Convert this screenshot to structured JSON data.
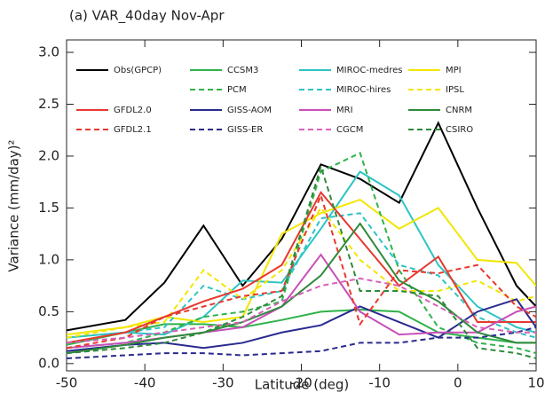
{
  "chart_data": {
    "type": "line",
    "title": "(a) VAR_40day   Nov-Apr",
    "x_label": "Latitude (deg)",
    "y_label": "Variance (mm/day)²",
    "x": [
      -50,
      -42.5,
      -37.5,
      -32.5,
      -27.5,
      -22.5,
      -17.5,
      -12.5,
      -7.5,
      -2.5,
      2.5,
      7.5,
      10
    ],
    "xlim": [
      -50,
      10
    ],
    "xticks": [
      -50,
      -40,
      -30,
      -20,
      -10,
      0,
      10
    ],
    "ylim": [
      -0.07,
      3.12
    ],
    "yticks": [
      {
        "value": 0,
        "label": "0.0"
      },
      0.5,
      {
        "value": 1,
        "label": "1.0"
      },
      1.5,
      {
        "value": 2,
        "label": "2.0"
      },
      2.5,
      {
        "value": 3,
        "label": "3.0"
      }
    ],
    "series": [
      {
        "name": "Obs(GPCP)",
        "color": "#000000",
        "dashed": false,
        "values": [
          0.32,
          0.42,
          0.78,
          1.33,
          0.75,
          1.2,
          1.92,
          1.78,
          1.55,
          2.32,
          1.5,
          0.75,
          0.55
        ]
      },
      {
        "name": "CCSM3",
        "color": "#2fb24a",
        "dashed": false,
        "values": [
          0.18,
          0.3,
          0.38,
          0.38,
          0.35,
          0.42,
          0.5,
          0.52,
          0.5,
          0.3,
          0.25,
          0.2,
          0.2
        ]
      },
      {
        "name": "MIROC-medres",
        "color": "#2ec4c4",
        "dashed": false,
        "values": [
          0.25,
          0.3,
          0.28,
          0.45,
          0.8,
          0.78,
          1.3,
          1.85,
          1.62,
          0.95,
          0.55,
          0.35,
          0.3
        ]
      },
      {
        "name": "MPI",
        "color": "#f2e600",
        "dashed": false,
        "values": [
          0.28,
          0.35,
          0.45,
          0.4,
          0.45,
          1.25,
          1.45,
          1.58,
          1.3,
          1.5,
          1.0,
          0.97,
          0.75
        ]
      },
      {
        "name": "PCM",
        "color": "#2fb24a",
        "dashed": true,
        "values": [
          0.15,
          0.2,
          0.3,
          0.45,
          0.5,
          0.6,
          1.85,
          2.03,
          0.9,
          0.35,
          0.2,
          0.15,
          0.1
        ]
      },
      {
        "name": "MIROC-hires",
        "color": "#2ec4c4",
        "dashed": true,
        "values": [
          0.25,
          0.3,
          0.35,
          0.75,
          0.62,
          0.7,
          1.4,
          1.45,
          0.95,
          0.85,
          0.45,
          0.3,
          0.25
        ]
      },
      {
        "name": "IPSL",
        "color": "#f2e600",
        "dashed": true,
        "values": [
          0.25,
          0.35,
          0.4,
          0.9,
          0.62,
          0.9,
          1.5,
          1.0,
          0.7,
          0.7,
          0.8,
          0.6,
          0.65
        ]
      },
      {
        "name": "GFDL2.0",
        "color": "#e8382e",
        "dashed": false,
        "values": [
          0.2,
          0.3,
          0.45,
          0.6,
          0.72,
          0.95,
          1.65,
          1.2,
          0.75,
          1.03,
          0.4,
          0.4,
          0.4
        ]
      },
      {
        "name": "GISS-AOM",
        "color": "#2a2a8f",
        "dashed": false,
        "values": [
          0.12,
          0.18,
          0.2,
          0.15,
          0.2,
          0.3,
          0.37,
          0.55,
          0.4,
          0.25,
          0.5,
          0.62,
          0.35
        ]
      },
      {
        "name": "MRI",
        "color": "#c84fb8",
        "dashed": false,
        "values": [
          0.15,
          0.2,
          0.25,
          0.3,
          0.35,
          0.55,
          1.05,
          0.5,
          0.28,
          0.3,
          0.3,
          0.5,
          0.55
        ]
      },
      {
        "name": "CNRM",
        "color": "#2e8a3a",
        "dashed": false,
        "values": [
          0.1,
          0.18,
          0.25,
          0.3,
          0.4,
          0.55,
          0.85,
          1.35,
          0.8,
          0.6,
          0.3,
          0.2,
          0.2
        ]
      },
      {
        "name": "GFDL2.1",
        "color": "#e8382e",
        "dashed": true,
        "values": [
          0.15,
          0.25,
          0.45,
          0.55,
          0.65,
          0.7,
          1.62,
          0.38,
          0.9,
          0.87,
          0.95,
          0.55,
          0.45
        ]
      },
      {
        "name": "GISS-ER",
        "color": "#2a2a8f",
        "dashed": true,
        "values": [
          0.05,
          0.08,
          0.1,
          0.1,
          0.08,
          0.1,
          0.12,
          0.2,
          0.2,
          0.25,
          0.25,
          0.3,
          0.35
        ]
      },
      {
        "name": "CGCM",
        "color": "#d860b8",
        "dashed": true,
        "values": [
          0.2,
          0.25,
          0.3,
          0.35,
          0.4,
          0.6,
          0.75,
          0.82,
          0.75,
          0.55,
          0.35,
          0.3,
          0.3
        ]
      },
      {
        "name": "CSIRO",
        "color": "#2e8a3a",
        "dashed": true,
        "values": [
          0.1,
          0.15,
          0.2,
          0.3,
          0.45,
          0.65,
          1.9,
          0.7,
          0.7,
          0.65,
          0.15,
          0.1,
          0.05
        ]
      }
    ]
  }
}
